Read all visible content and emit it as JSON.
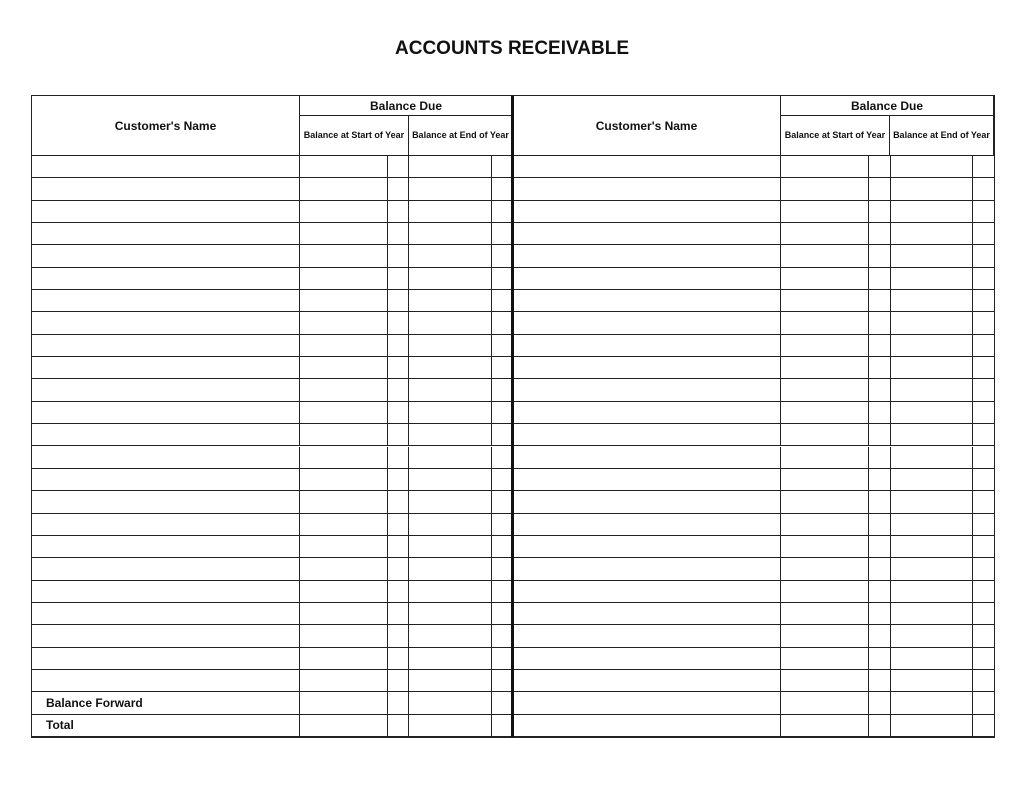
{
  "title": "ACCOUNTS RECEIVABLE",
  "header": {
    "customer_name": "Customer's Name",
    "balance_due": "Balance Due",
    "start_of_year": "Balance at Start of Year",
    "end_of_year": "Balance at End of Year"
  },
  "blank_rows": 24,
  "footer_rows": [
    "Balance Forward",
    "Total"
  ]
}
